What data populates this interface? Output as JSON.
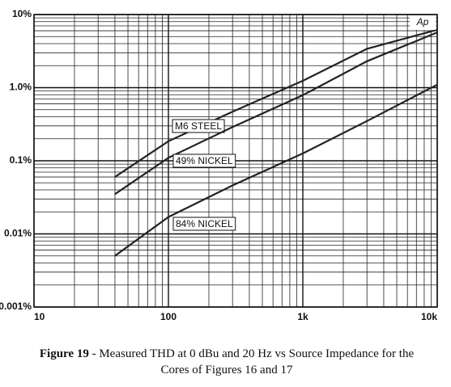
{
  "chart_data": {
    "type": "line",
    "logo": "Ap",
    "x": [
      40,
      100,
      300,
      1000,
      3000,
      10000
    ],
    "series": [
      {
        "name": "M6 STEEL",
        "color": "#222222",
        "values": [
          0.06,
          0.185,
          0.47,
          1.24,
          3.4,
          6.2
        ]
      },
      {
        "name": "49% NICKEL",
        "color": "#222222",
        "values": [
          0.035,
          0.11,
          0.29,
          0.79,
          2.3,
          5.7
        ]
      },
      {
        "name": "84% NICKEL",
        "color": "#222222",
        "values": [
          0.005,
          0.017,
          0.046,
          0.126,
          0.35,
          1.1
        ]
      }
    ],
    "xlim": [
      10,
      10000
    ],
    "ylim": [
      0.001,
      10
    ],
    "xticks": [
      10,
      100,
      {
        "value": 1000,
        "label": "1k"
      },
      {
        "value": 10000,
        "label": "10k"
      }
    ],
    "yticks": [
      {
        "value": 10,
        "label": "10%"
      },
      {
        "value": 1,
        "label": "1.0%"
      },
      {
        "value": 0.1,
        "label": "0.1%"
      },
      {
        "value": 0.01,
        "label": "0.01%"
      },
      {
        "value": 0.001,
        "label": "0.001%"
      }
    ],
    "log_x": true,
    "log_y": true,
    "grid": true,
    "figure_label": "Figure 19",
    "caption": " - Measured THD at 0 dBu and 20 Hz vs Source Impedance for the Cores of Figures 16 and 17"
  }
}
